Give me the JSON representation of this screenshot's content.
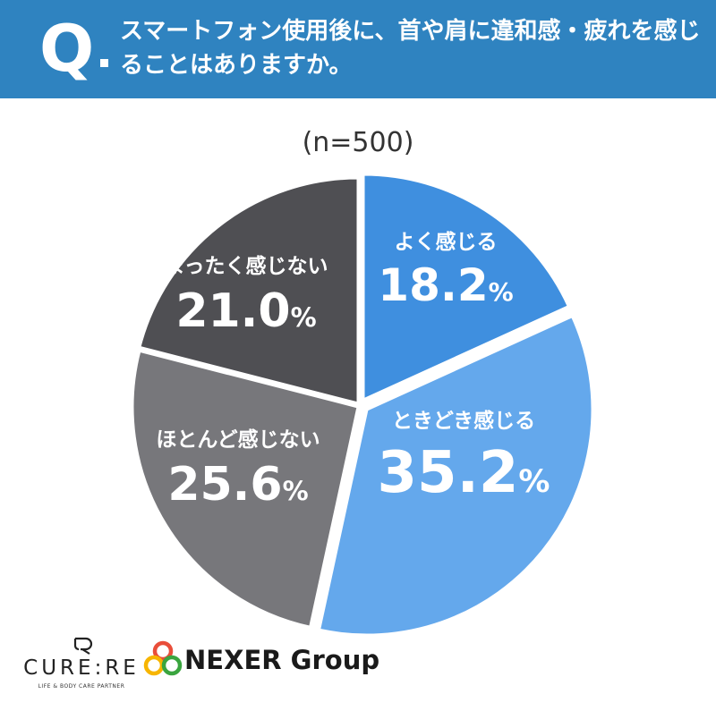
{
  "header": {
    "q_mark": "Q",
    "question": "スマートフォン使用後に、首や肩に違和感・疲れを感じることはありますか。"
  },
  "sample_size": "(n=500)",
  "chart_data": {
    "type": "pie",
    "start_angle_deg": 0,
    "direction": "clockwise",
    "categories": [
      "よく感じる",
      "ときどき感じる",
      "ほとんど感じない",
      "まったく感じない"
    ],
    "values": [
      18.2,
      35.2,
      25.6,
      21.0
    ],
    "value_labels": [
      "18.2",
      "35.2",
      "25.6",
      "21.0"
    ],
    "unit": "%",
    "colors": [
      "#3f8fdf",
      "#64a8ec",
      "#77777b",
      "#4f4f53"
    ]
  },
  "logos": {
    "cure_word": "CURE:RE",
    "cure_tagline": "LIFE & BODY CARE PARTNER",
    "nexer_word": "NEXER Group",
    "nexer_colors": [
      "#e94e3a",
      "#f7b500",
      "#3aa53f"
    ]
  }
}
